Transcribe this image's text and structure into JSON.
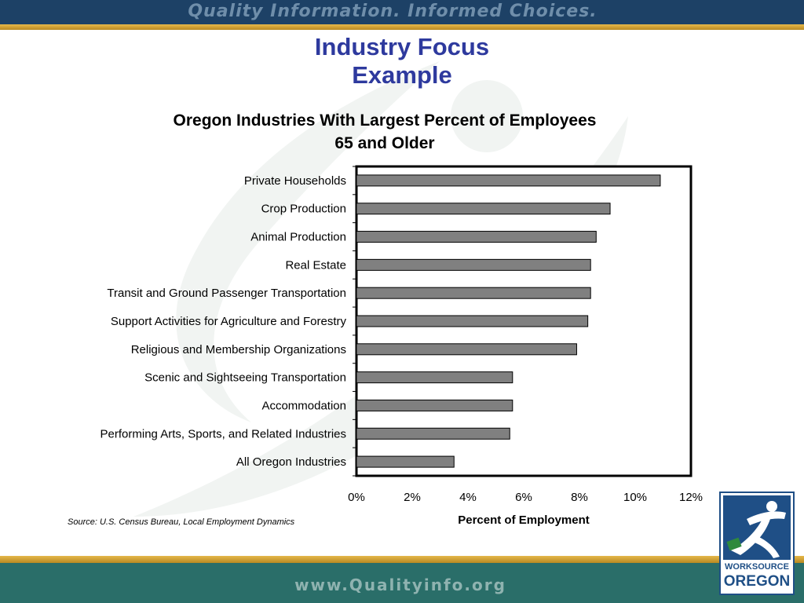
{
  "banner": {
    "tagline": "Quality Information. Informed Choices.",
    "url": "www.Qualityinfo.org"
  },
  "slide": {
    "title_line1": "Industry Focus",
    "title_line2": "Example"
  },
  "source_note": "Source: U.S. Census Bureau, Local Employment Dynamics",
  "logo": {
    "word1": "WORKSOURCE",
    "word2": "OREGON",
    "colors": {
      "blue": "#1f4f86",
      "green": "#2f8a3c"
    }
  },
  "colors": {
    "bar_fill": "#808080",
    "title_blue": "#2e3a9e",
    "top_band": "#1d4166",
    "bottom_band": "#2a6e69",
    "gold_stripe": "#d4a437"
  },
  "chart_data": {
    "type": "bar",
    "orientation": "horizontal",
    "title_line1": "Oregon Industries With Largest Percent of Employees",
    "title_line2": "65 and Older",
    "xlabel": "Percent of Employment",
    "ylabel": "",
    "xlim": [
      0,
      12
    ],
    "x_ticks": [
      0,
      2,
      4,
      6,
      8,
      10,
      12
    ],
    "x_tick_labels": [
      "0%",
      "2%",
      "4%",
      "6%",
      "8%",
      "10%",
      "12%"
    ],
    "grid": false,
    "legend": "none",
    "categories": [
      "Private Households",
      "Crop Production",
      "Animal Production",
      "Real Estate",
      "Transit and Ground Passenger Transportation",
      "Support Activities for Agriculture and Forestry",
      "Religious and Membership Organizations",
      "Scenic and Sightseeing Transportation",
      "Accommodation",
      "Performing Arts, Sports, and Related Industries",
      "All Oregon Industries"
    ],
    "values": [
      10.9,
      9.1,
      8.6,
      8.4,
      8.4,
      8.3,
      7.9,
      5.6,
      5.6,
      5.5,
      3.5
    ]
  }
}
